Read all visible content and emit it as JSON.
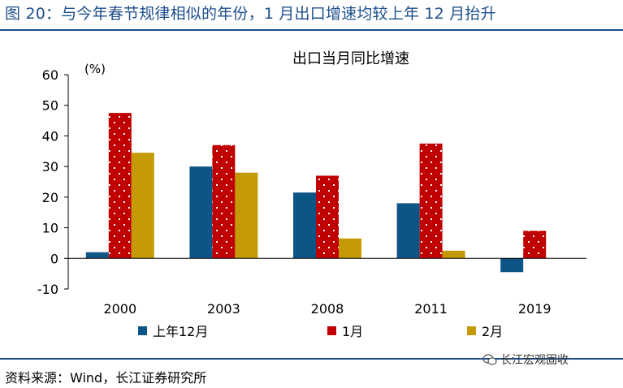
{
  "figure": {
    "title": "图 20：与今年春节规律相似的年份，1 月出口增速均较上年 12 月抬升",
    "source": "资料来源：Wind，长江证券研究所",
    "watermark": "长江宏观固收"
  },
  "chart_data": {
    "type": "bar",
    "title": "出口当月同比增速",
    "unit_label": "(%)",
    "categories": [
      "2000",
      "2003",
      "2008",
      "2011",
      "2019"
    ],
    "series": [
      {
        "name": "上年12月",
        "color": "#0d5587",
        "pattern": "solid",
        "values": [
          2.0,
          30.0,
          21.5,
          18.0,
          -4.5
        ]
      },
      {
        "name": "1月",
        "color": "#c00000",
        "pattern": "dots",
        "values": [
          47.5,
          37.0,
          27.0,
          37.5,
          9.0
        ]
      },
      {
        "name": "2月",
        "color": "#c49a06",
        "pattern": "solid",
        "values": [
          34.5,
          28.0,
          6.5,
          2.5,
          null
        ]
      }
    ],
    "ylim": [
      -10,
      60
    ],
    "yticks": [
      -10,
      0,
      10,
      20,
      30,
      40,
      50,
      60
    ],
    "grid": false,
    "legend_position": "bottom"
  }
}
